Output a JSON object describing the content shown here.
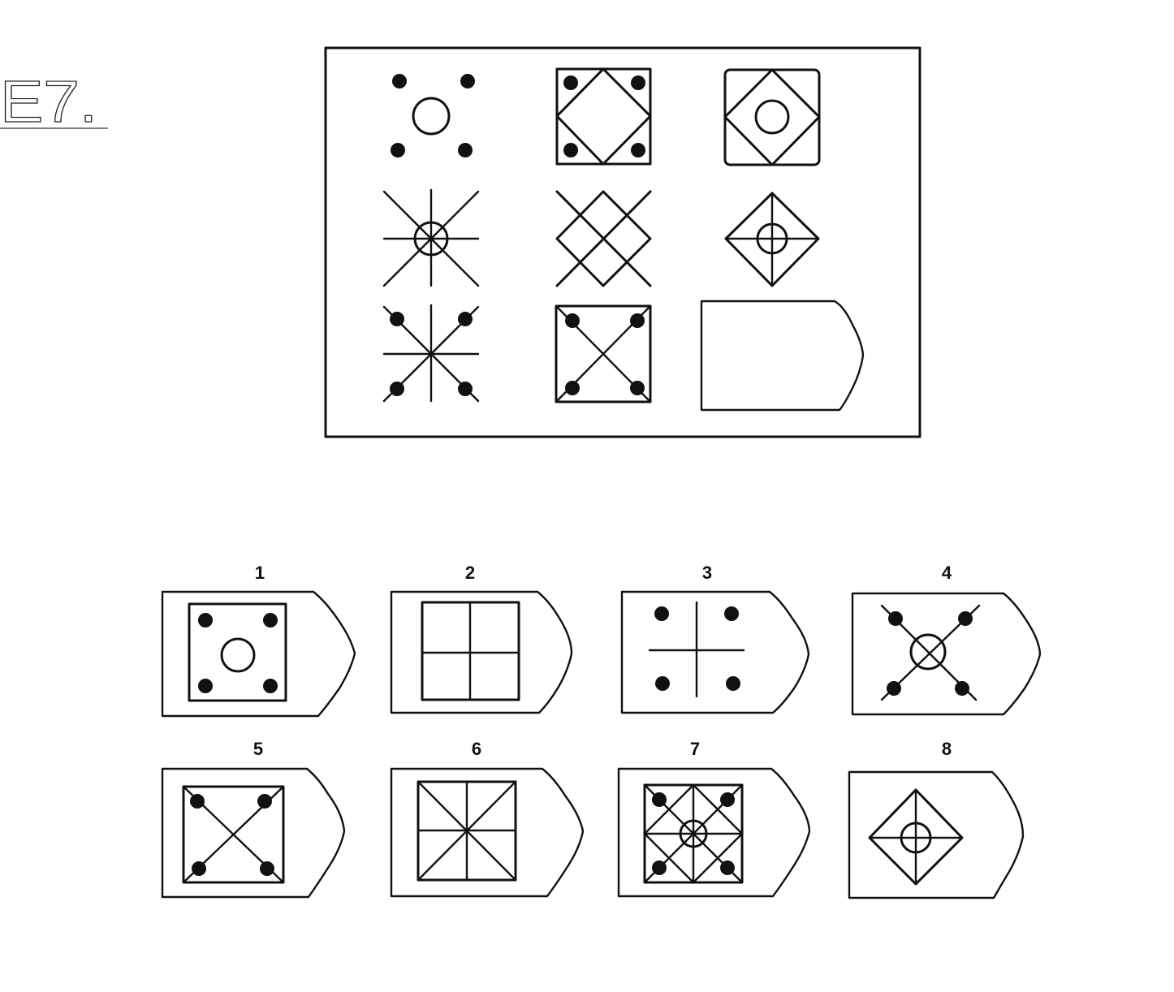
{
  "problem": {
    "id": "E7."
  },
  "matrix": {
    "cells": [
      {
        "name": "cell-1-1",
        "content": "circle with four dots"
      },
      {
        "name": "cell-1-2",
        "content": "square with diamond and four dots"
      },
      {
        "name": "cell-1-3",
        "content": "square with diamond and circle"
      },
      {
        "name": "cell-2-1",
        "content": "star lines with circle"
      },
      {
        "name": "cell-2-2",
        "content": "diamond lattice"
      },
      {
        "name": "cell-2-3",
        "content": "diamond with cross and circle"
      },
      {
        "name": "cell-3-1",
        "content": "star lines with dots"
      },
      {
        "name": "cell-3-2",
        "content": "square with X and dots"
      },
      {
        "name": "cell-3-3",
        "content": "empty answer slot"
      }
    ]
  },
  "options": [
    {
      "number": "1"
    },
    {
      "number": "2"
    },
    {
      "number": "3"
    },
    {
      "number": "4"
    },
    {
      "number": "5"
    },
    {
      "number": "6"
    },
    {
      "number": "7"
    },
    {
      "number": "8"
    }
  ],
  "colors": {
    "ink": "#111111",
    "background": "#ffffff"
  }
}
